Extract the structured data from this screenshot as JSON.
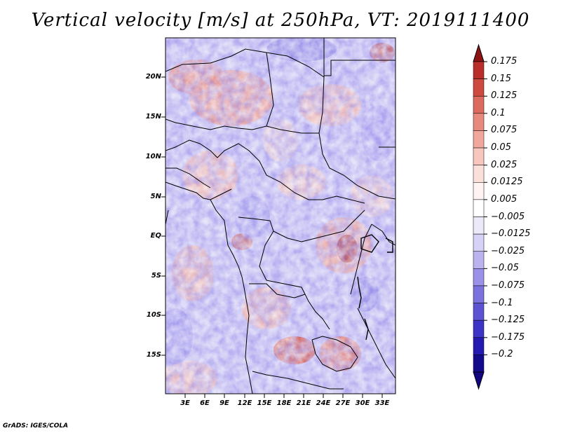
{
  "title": "Vertical velocity [m/s] at 250hPa, VT: 2019111400",
  "credit": "GrADS: IGES/COLA",
  "map": {
    "lat_labels": [
      "20N",
      "15N",
      "10N",
      "5N",
      "EQ",
      "5S",
      "10S",
      "15S"
    ],
    "lon_labels": [
      "3E",
      "6E",
      "9E",
      "12E",
      "15E",
      "18E",
      "21E",
      "24E",
      "27E",
      "30E",
      "33E"
    ]
  },
  "colorbar": {
    "labels": [
      "0.175",
      "0.15",
      "0.125",
      "0.1",
      "0.075",
      "0.05",
      "0.025",
      "0.0125",
      "0.005",
      "−0.005",
      "−0.0125",
      "−0.025",
      "−0.05",
      "−0.075",
      "−0.1",
      "−0.125",
      "−0.175",
      "−0.2"
    ],
    "colors": [
      "#a01b1b",
      "#b92e2a",
      "#cc4a40",
      "#dc6a5e",
      "#e7897c",
      "#f0a89c",
      "#f7c6bd",
      "#fbe0da",
      "#fff4f1",
      "#ffffff",
      "#ece9fb",
      "#d6d1f6",
      "#bab3f0",
      "#9a92e8",
      "#7b72de",
      "#5c52d2",
      "#3d33c4",
      "#2419b0",
      "#140a8c"
    ],
    "tip_top_color": "#8e1414",
    "tip_bottom_color": "#120680"
  }
}
